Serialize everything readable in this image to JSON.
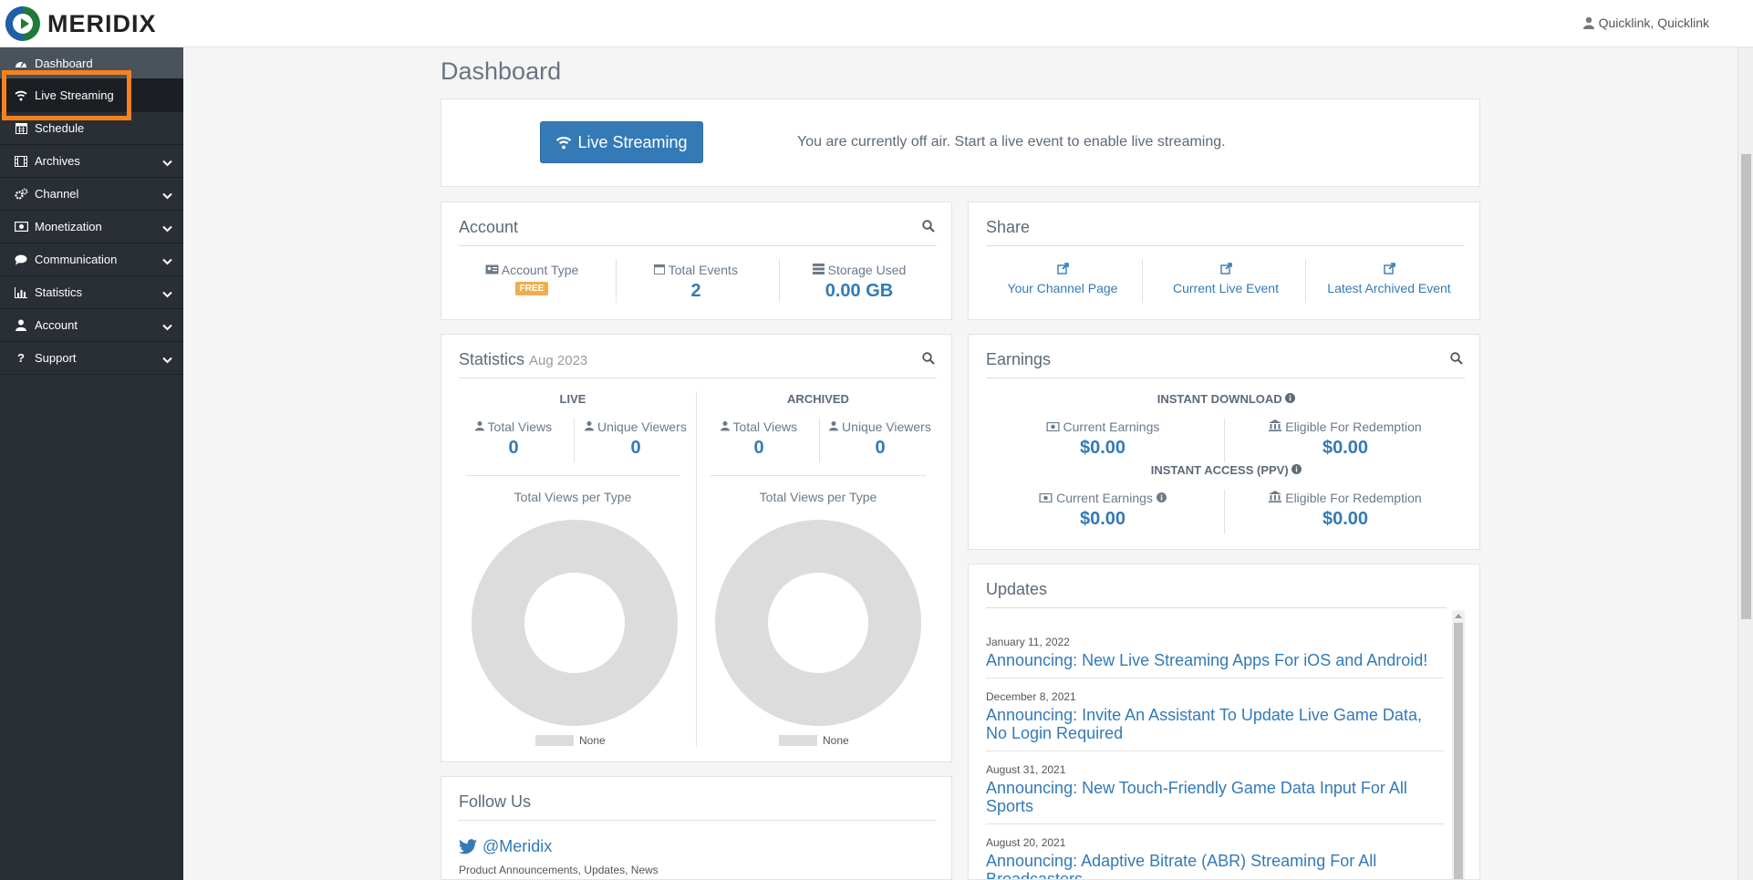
{
  "brand": {
    "name": "MERIDIX"
  },
  "user": {
    "name": "Quicklink, Quicklink"
  },
  "sidebar": {
    "items": [
      {
        "label": "Dashboard"
      },
      {
        "label": "Live Streaming"
      },
      {
        "label": "Schedule"
      },
      {
        "label": "Archives"
      },
      {
        "label": "Channel"
      },
      {
        "label": "Monetization"
      },
      {
        "label": "Communication"
      },
      {
        "label": "Statistics"
      },
      {
        "label": "Account"
      },
      {
        "label": "Support"
      }
    ]
  },
  "page": {
    "title": "Dashboard"
  },
  "live_panel": {
    "button_label": "Live Streaming",
    "message": "You are currently off air. Start a live event to enable live streaming."
  },
  "account": {
    "title": "Account",
    "account_type_label": "Account Type",
    "account_type_badge": "FREE",
    "total_events_label": "Total Events",
    "total_events_value": "2",
    "storage_label": "Storage Used",
    "storage_value": "0.00 GB"
  },
  "share": {
    "title": "Share",
    "links": [
      "Your Channel Page",
      "Current Live Event",
      "Latest Archived Event"
    ]
  },
  "statistics": {
    "title": "Statistics",
    "period": "Aug 2023",
    "live": {
      "heading": "LIVE",
      "total_views_label": "Total Views",
      "total_views": "0",
      "unique_label": "Unique Viewers",
      "unique": "0",
      "chart_title": "Total Views per Type",
      "legend": "None"
    },
    "archived": {
      "heading": "ARCHIVED",
      "total_views_label": "Total Views",
      "total_views": "0",
      "unique_label": "Unique Viewers",
      "unique": "0",
      "chart_title": "Total Views per Type",
      "legend": "None"
    }
  },
  "earnings": {
    "title": "Earnings",
    "instant_download": {
      "heading": "INSTANT DOWNLOAD",
      "current_label": "Current Earnings",
      "current": "$0.00",
      "eligible_label": "Eligible For Redemption",
      "eligible": "$0.00"
    },
    "instant_access": {
      "heading": "INSTANT ACCESS (PPV)",
      "current_label": "Current Earnings",
      "current": "$0.00",
      "eligible_label": "Eligible For Redemption",
      "eligible": "$0.00"
    }
  },
  "updates": {
    "title": "Updates",
    "items": [
      {
        "date": "January 11, 2022",
        "title": "Announcing: New Live Streaming Apps For iOS and Android!"
      },
      {
        "date": "December 8, 2021",
        "title": "Announcing: Invite An Assistant To Update Live Game Data, No Login Required"
      },
      {
        "date": "August 31, 2021",
        "title": "Announcing: New Touch-Friendly Game Data Input For All Sports"
      },
      {
        "date": "August 20, 2021",
        "title": "Announcing: Adaptive Bitrate (ABR) Streaming For All Broadcasters"
      }
    ]
  },
  "follow": {
    "title": "Follow Us",
    "handle": "@Meridix",
    "description": "Product Announcements, Updates, News"
  },
  "colors": {
    "accent": "#337ab7",
    "sidebar": "#2a2f36",
    "highlight": "#f5821f",
    "badge": "#f0ad4e"
  }
}
